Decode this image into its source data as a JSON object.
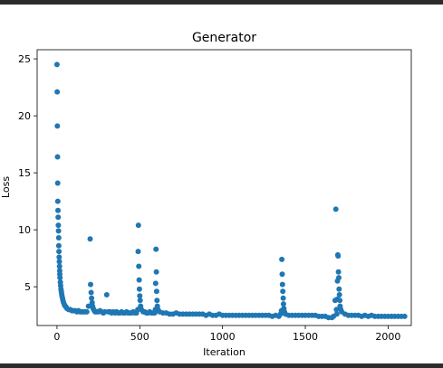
{
  "chart_data": {
    "type": "scatter",
    "title": "Generator",
    "xlabel": "Iteration",
    "ylabel": "Loss",
    "xlim": [
      -120,
      2140
    ],
    "ylim": [
      1.6,
      25.8
    ],
    "xticks": [
      0,
      500,
      1000,
      1500,
      2000
    ],
    "yticks": [
      5,
      10,
      15,
      20,
      25
    ],
    "xtick_labels": [
      "0",
      "500",
      "1000",
      "1500",
      "2000"
    ],
    "ytick_labels": [
      "5",
      "10",
      "15",
      "20",
      "25"
    ],
    "grid": false,
    "legend": "none",
    "marker_color": "#1f77b4",
    "series": [
      {
        "x": [
          0,
          1,
          2,
          3,
          4,
          5,
          6,
          7,
          8,
          9,
          10,
          11,
          12,
          13,
          14,
          15,
          16,
          17,
          18,
          20,
          22,
          24,
          26,
          28,
          30,
          33,
          36,
          40,
          45,
          50,
          55,
          60,
          70,
          80,
          90,
          100,
          110,
          120,
          130,
          140,
          150,
          160,
          170,
          180,
          190,
          200,
          203,
          206,
          209,
          212,
          215,
          218,
          222,
          226,
          230,
          240,
          250,
          260,
          270,
          280,
          290,
          300,
          310,
          320,
          330,
          340,
          350,
          360,
          370,
          380,
          390,
          400,
          410,
          420,
          430,
          440,
          450,
          460,
          470,
          480,
          488,
          490,
          492,
          494,
          496,
          498,
          500,
          502,
          505,
          510,
          520,
          530,
          540,
          550,
          560,
          570,
          580,
          590,
          594,
          596,
          598,
          600,
          602,
          604,
          606,
          610,
          620,
          640,
          660,
          680,
          700,
          720,
          740,
          760,
          780,
          800,
          820,
          840,
          860,
          880,
          900,
          920,
          940,
          960,
          980,
          1000,
          1020,
          1040,
          1060,
          1080,
          1100,
          1120,
          1140,
          1160,
          1180,
          1200,
          1220,
          1240,
          1260,
          1280,
          1300,
          1320,
          1340,
          1350,
          1356,
          1358,
          1360,
          1362,
          1364,
          1366,
          1368,
          1370,
          1374,
          1380,
          1400,
          1420,
          1440,
          1460,
          1480,
          1500,
          1520,
          1540,
          1560,
          1580,
          1600,
          1620,
          1640,
          1660,
          1670,
          1680,
          1684,
          1688,
          1690,
          1692,
          1694,
          1696,
          1698,
          1700,
          1702,
          1704,
          1706,
          1708,
          1710,
          1714,
          1720,
          1740,
          1760,
          1780,
          1800,
          1820,
          1840,
          1860,
          1880,
          1900,
          1920,
          1940,
          1960,
          1980,
          2000,
          2020,
          2040,
          2060,
          2080,
          2100
        ],
        "y": [
          24.5,
          22.1,
          19.1,
          16.4,
          14.1,
          12.5,
          11.7,
          11.1,
          10.4,
          9.9,
          9.3,
          8.6,
          8.1,
          7.6,
          7.2,
          6.8,
          6.4,
          6.1,
          5.8,
          5.4,
          5.1,
          4.8,
          4.6,
          4.4,
          4.2,
          4.0,
          3.8,
          3.6,
          3.4,
          3.3,
          3.2,
          3.1,
          3.0,
          3.0,
          2.9,
          2.9,
          2.9,
          2.8,
          2.9,
          2.8,
          2.8,
          2.8,
          2.8,
          2.8,
          3.3,
          9.2,
          5.2,
          4.5,
          4.0,
          3.6,
          3.3,
          3.1,
          3.0,
          2.9,
          2.8,
          2.8,
          2.8,
          2.9,
          2.8,
          2.7,
          2.8,
          4.3,
          2.8,
          2.8,
          2.7,
          2.8,
          2.7,
          2.8,
          2.7,
          2.7,
          2.8,
          2.7,
          2.7,
          2.8,
          2.7,
          2.7,
          2.7,
          2.8,
          2.7,
          2.7,
          3.0,
          8.1,
          10.4,
          6.8,
          5.6,
          4.8,
          4.2,
          3.8,
          3.3,
          3.0,
          2.8,
          2.8,
          2.7,
          2.7,
          2.8,
          2.7,
          2.7,
          2.7,
          3.0,
          5.3,
          8.3,
          6.3,
          4.6,
          3.8,
          3.3,
          3.0,
          2.8,
          2.7,
          2.7,
          2.6,
          2.6,
          2.7,
          2.6,
          2.6,
          2.6,
          2.6,
          2.6,
          2.6,
          2.6,
          2.6,
          2.5,
          2.6,
          2.5,
          2.5,
          2.6,
          2.5,
          2.5,
          2.5,
          2.5,
          2.5,
          2.5,
          2.5,
          2.5,
          2.5,
          2.5,
          2.5,
          2.5,
          2.5,
          2.5,
          2.5,
          2.4,
          2.5,
          2.4,
          2.6,
          2.9,
          7.4,
          6.1,
          5.2,
          4.6,
          4.0,
          3.5,
          3.1,
          2.8,
          2.6,
          2.5,
          2.5,
          2.5,
          2.5,
          2.5,
          2.5,
          2.5,
          2.5,
          2.5,
          2.4,
          2.4,
          2.4,
          2.3,
          2.3,
          2.4,
          3.8,
          11.8,
          3.0,
          2.6,
          3.9,
          5.5,
          7.8,
          7.7,
          6.3,
          5.8,
          4.8,
          4.3,
          3.8,
          3.3,
          3.0,
          2.8,
          2.6,
          2.5,
          2.5,
          2.5,
          2.5,
          2.4,
          2.5,
          2.4,
          2.5,
          2.4,
          2.4,
          2.4,
          2.4,
          2.4,
          2.4,
          2.4,
          2.4,
          2.4,
          2.4
        ]
      }
    ]
  }
}
